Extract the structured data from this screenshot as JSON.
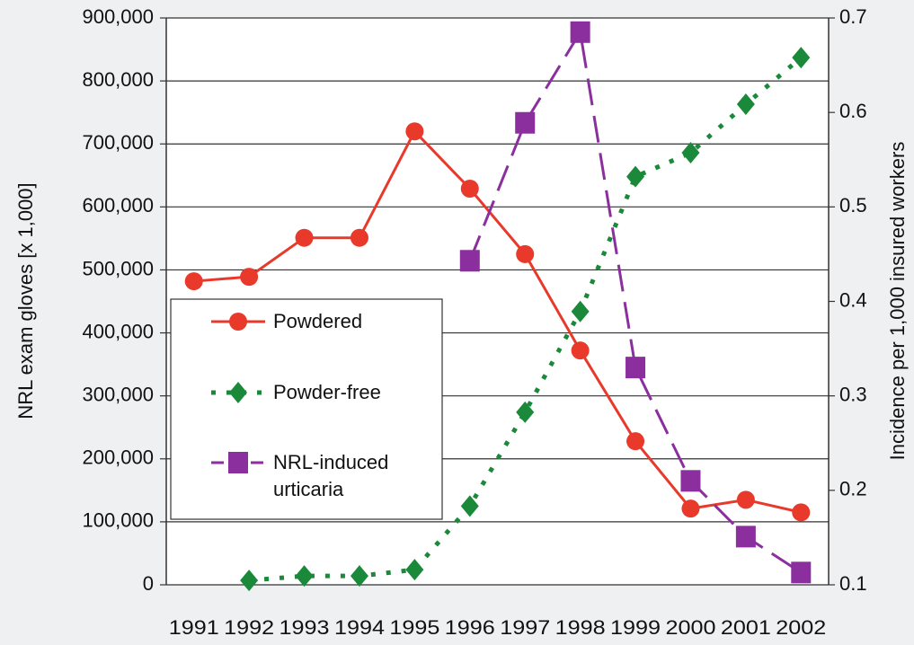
{
  "chart_data": {
    "type": "line",
    "categories": [
      "1991",
      "1992",
      "1993",
      "1994",
      "1995",
      "1996",
      "1997",
      "1998",
      "1999",
      "2000",
      "2001",
      "2002"
    ],
    "ylabel": "NRL exam gloves [x 1,000]",
    "y2label": "Incidence per 1,000 insured workers",
    "ylim": [
      0,
      900000
    ],
    "yticks": [
      0,
      {
        "value": 100000,
        "label": "100,000"
      },
      {
        "value": 200000,
        "label": "200,000"
      },
      {
        "value": 300000,
        "label": "300,000"
      },
      {
        "value": 400000,
        "label": "400,000"
      },
      {
        "value": 500000,
        "label": "500,000"
      },
      {
        "value": 600000,
        "label": "600,000"
      },
      {
        "value": 700000,
        "label": "700,000"
      },
      {
        "value": 800000,
        "label": "800,000"
      },
      {
        "value": 900000,
        "label": "900,000"
      }
    ],
    "y2lim": [
      0.1,
      0.7
    ],
    "y2ticks": [
      0.1,
      0.2,
      0.3,
      0.4,
      0.5,
      0.6,
      0.7
    ],
    "grid": true,
    "legend": "left",
    "series": [
      {
        "name": "Powdered",
        "color": "#e8392b",
        "marker": "circle",
        "dash": "solid",
        "values": [
          482000,
          489000,
          551000,
          551000,
          720000,
          629000,
          525000,
          372000,
          228000,
          121000,
          135000,
          115000
        ]
      },
      {
        "name": "Powder-free",
        "color": "#1a8a3a",
        "marker": "diamond",
        "dash": "dotted",
        "values": [
          null,
          7000,
          14000,
          14000,
          24000,
          125000,
          274000,
          434000,
          648000,
          686000,
          763000,
          837000
        ]
      },
      {
        "name": "NRL-induced urticaria",
        "color": "#8b2f9e",
        "marker": "square",
        "dash": "dashed",
        "axis": "y2",
        "values": [
          null,
          null,
          null,
          null,
          null,
          0.443,
          0.589,
          0.685,
          0.33,
          0.21,
          0.151,
          0.113
        ]
      }
    ]
  }
}
